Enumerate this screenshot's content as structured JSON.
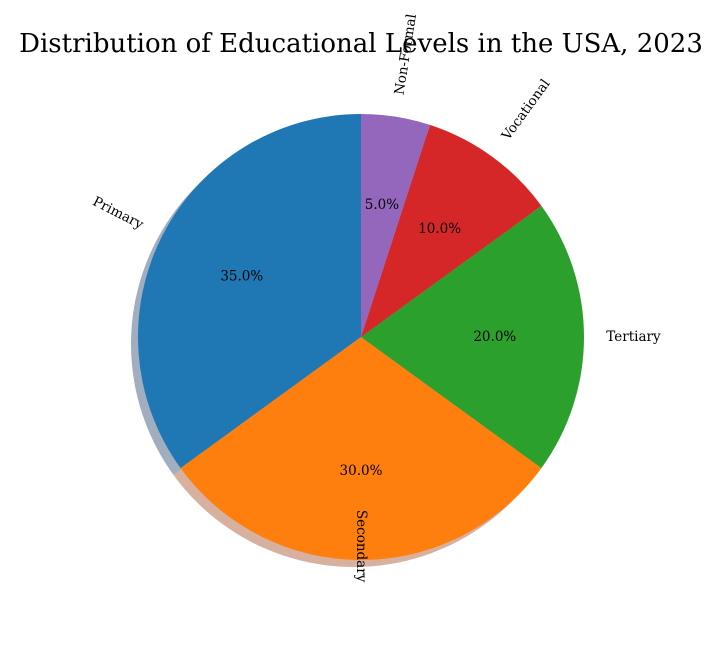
{
  "chart_data": {
    "type": "pie",
    "title": "Distribution of Educational Levels in the USA, 2023",
    "categories": [
      "Primary",
      "Secondary",
      "Tertiary",
      "Vocational",
      "Non-Formal"
    ],
    "values": [
      35.0,
      30.0,
      20.0,
      10.0,
      5.0
    ],
    "value_labels": [
      "35.0%",
      "30.0%",
      "20.0%",
      "10.0%",
      "5.0%"
    ],
    "colors": [
      "#1f77b4",
      "#ff7f0e",
      "#2ca02c",
      "#d62728",
      "#9467bd"
    ],
    "start_angle_deg": 90,
    "direction": "counterclockwise",
    "shadow": true,
    "legend": "none"
  }
}
